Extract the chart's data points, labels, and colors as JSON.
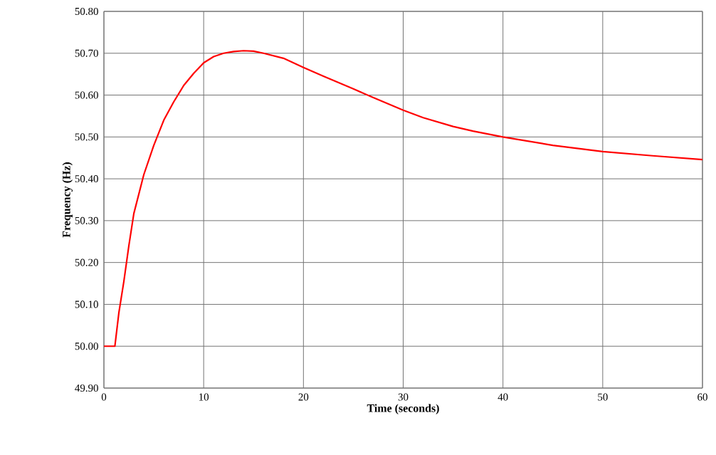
{
  "chart_data": {
    "type": "line",
    "xlabel": "Time (seconds)",
    "ylabel": "Frequency (Hz)",
    "x": [
      0,
      1,
      1.1,
      1.5,
      2,
      2.5,
      3,
      4,
      5,
      6,
      7,
      8,
      9,
      10,
      11,
      12,
      13,
      14,
      15,
      16,
      18,
      20,
      22,
      25,
      27,
      30,
      32,
      35,
      37,
      40,
      45,
      50,
      55,
      60
    ],
    "series": [
      {
        "color": "#ff0000",
        "values": [
          50.0,
          50.0,
          50.0,
          50.08,
          50.155,
          50.24,
          50.317,
          50.41,
          50.48,
          50.54,
          50.584,
          50.623,
          50.652,
          50.677,
          50.692,
          50.7,
          50.704,
          50.706,
          50.705,
          50.7,
          50.688,
          50.666,
          50.645,
          50.615,
          50.594,
          50.564,
          50.546,
          50.525,
          50.514,
          50.5,
          50.48,
          50.465,
          50.455,
          50.446
        ]
      }
    ],
    "xlim": [
      0,
      60
    ],
    "ylim": [
      49.9,
      50.8
    ],
    "xticks": [
      0,
      10,
      20,
      30,
      40,
      50,
      60
    ],
    "yticks": [
      {
        "value": 49.9,
        "label": "49.90"
      },
      {
        "value": 50.0,
        "label": "50.00"
      },
      {
        "value": 50.1,
        "label": "50.10"
      },
      {
        "value": 50.2,
        "label": "50.20"
      },
      {
        "value": 50.3,
        "label": "50.30"
      },
      {
        "value": 50.4,
        "label": "50.40"
      },
      {
        "value": 50.5,
        "label": "50.50"
      },
      {
        "value": 50.6,
        "label": "50.60"
      },
      {
        "value": 50.7,
        "label": "50.70"
      },
      {
        "value": 50.8,
        "label": "50.80"
      }
    ],
    "grid": true,
    "marker": "none",
    "line_style": "solid"
  }
}
